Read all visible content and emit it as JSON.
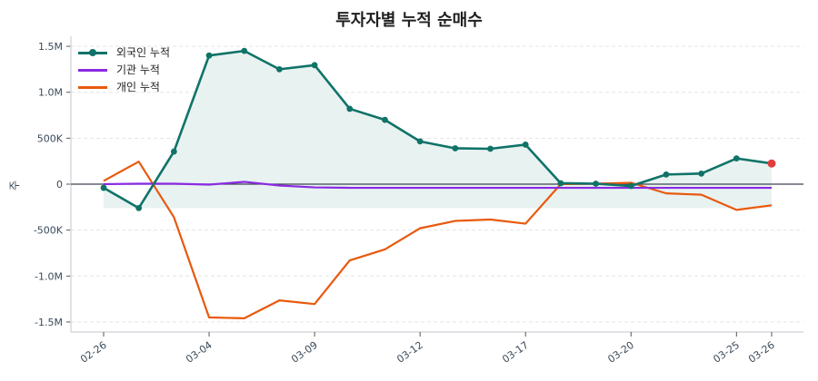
{
  "title": "투자자별 누적 순매수",
  "legend": [
    {
      "label": "외국인 누적",
      "color": "#0f7368",
      "marker": true
    },
    {
      "label": "기관 누적",
      "color": "#8a2be2",
      "marker": false
    },
    {
      "label": "개인 누적",
      "color": "#e8590c",
      "marker": false
    }
  ],
  "ylabel": "주",
  "colors": {
    "foreign": "#0f7368",
    "institution": "#8a2be2",
    "individual": "#e8590c",
    "fill": "#e8f2f1",
    "last_point": "#e03e3e",
    "zero_line": "#3d4550",
    "grid": "#e4e4e4",
    "axis": "#d5d9de"
  },
  "chart_data": {
    "type": "line",
    "title": "투자자별 누적 순매수",
    "xlabel": "",
    "ylabel": "주",
    "ylim": [
      -1600000,
      1600000
    ],
    "yticks": [
      1500000,
      1000000,
      500000,
      0,
      -500000,
      -1000000,
      -1500000
    ],
    "ytick_labels": [
      "1.5M",
      "1.0M",
      "500K",
      "0",
      "-500K",
      "-1.0M",
      "-1.5M"
    ],
    "xtick_labels": [
      "02-26",
      "03-04",
      "03-09",
      "03-12",
      "03-17",
      "03-20",
      "03-25",
      "03-26"
    ],
    "xtick_indices": [
      0,
      3,
      6,
      9,
      12,
      15,
      18,
      19
    ],
    "grid": true,
    "legend_position": "upper left",
    "x": [
      "02-26",
      "02-27",
      "02-28",
      "03-04",
      "03-05",
      "03-06",
      "03-09",
      "03-10",
      "03-11",
      "03-12",
      "03-13",
      "03-14",
      "03-17",
      "03-18",
      "03-19",
      "03-20",
      "03-21",
      "03-24",
      "03-25",
      "03-26"
    ],
    "series": [
      {
        "name": "외국인 누적",
        "values": [
          -40000,
          -260000,
          355000,
          1400000,
          1450000,
          1250000,
          1295000,
          820000,
          700000,
          465000,
          390000,
          385000,
          430000,
          10000,
          5000,
          -20000,
          105000,
          115000,
          280000,
          225000
        ]
      },
      {
        "name": "기관 누적",
        "values": [
          0,
          5000,
          5000,
          -5000,
          25000,
          -15000,
          -35000,
          -40000,
          -40000,
          -40000,
          -40000,
          -40000,
          -40000,
          -40000,
          -40000,
          -40000,
          -40000,
          -40000,
          -40000,
          -40000
        ]
      },
      {
        "name": "개인 누적",
        "values": [
          35000,
          245000,
          -360000,
          -1450000,
          -1460000,
          -1265000,
          -1305000,
          -830000,
          -710000,
          -480000,
          -400000,
          -385000,
          -430000,
          0,
          5000,
          15000,
          -100000,
          -115000,
          -280000,
          -230000
        ]
      }
    ]
  }
}
